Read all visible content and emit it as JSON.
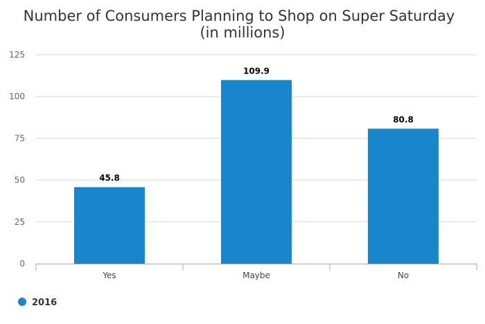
{
  "chart_data": {
    "type": "bar",
    "title": "Number of Consumers Planning to Shop on Super Saturday",
    "subtitle": "(in millions)",
    "categories": [
      "Yes",
      "Maybe",
      "No"
    ],
    "series": [
      {
        "name": "2016",
        "values": [
          45.8,
          109.9,
          80.8
        ],
        "color": "#1a87cc"
      }
    ],
    "data_labels": [
      "45.8",
      "109.9",
      "80.8"
    ],
    "xlabel": "",
    "ylabel": "",
    "ylim": [
      0,
      125
    ],
    "yticks": [
      0,
      25,
      50,
      75,
      100,
      125
    ],
    "ytick_labels": [
      "0",
      "25",
      "50",
      "75",
      "100",
      "125"
    ],
    "grid": true,
    "legend_position": "bottom-left"
  }
}
